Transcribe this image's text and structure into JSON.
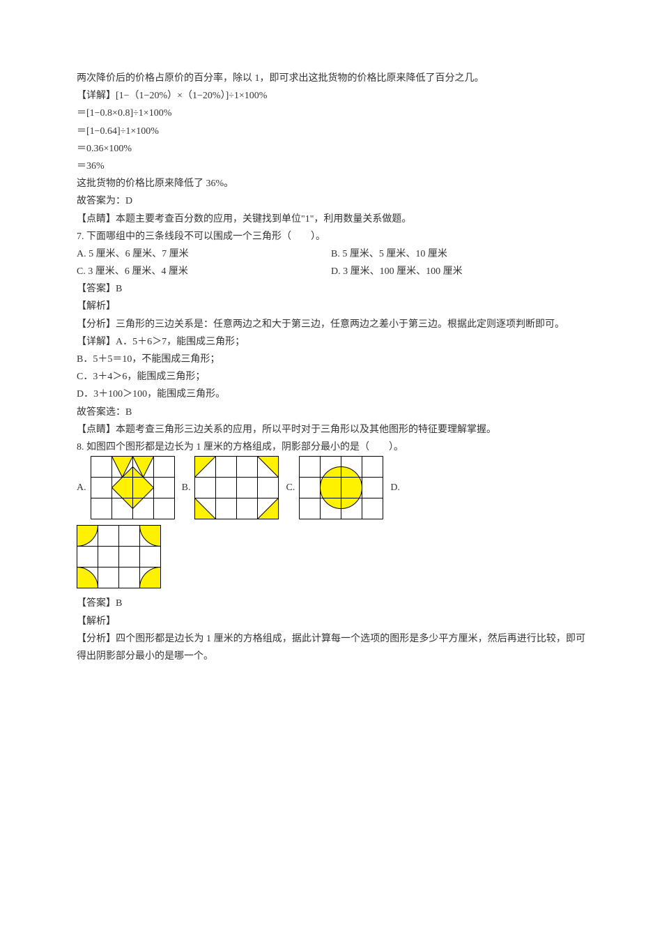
{
  "intro": {
    "line1": "两次降价后的价格占原价的百分率，除以 1，即可求出这批货物的价格比原来降低了百分之几。",
    "calc_label": "【详解】[1−（1−20%）×（1−20%）]÷1×100%",
    "calc1": "＝[1−0.8×0.8]÷1×100%",
    "calc2": "＝[1−0.64]÷1×100%",
    "calc3": "＝0.36×100%",
    "calc4": "＝36%",
    "conclusion": "这批货物的价格比原来降低了 36%。",
    "answer_line": "故答案为：D",
    "note": "【点睛】本题主要考查百分数的应用，关键找到单位\"1\"，利用数量关系做题。"
  },
  "q7": {
    "stem": "7. 下面哪组中的三条线段不可以围成一个三角形（　　）。",
    "optA": "A. 5 厘米、6 厘米、7 厘米",
    "optB": "B. 5 厘米、5 厘米、10 厘米",
    "optC": "C. 3 厘米、6 厘米、4 厘米",
    "optD": "D. 3 厘米、100 厘米、100 厘米",
    "answer": "【答案】B",
    "analysis_label": "【解析】",
    "analysis1": "【分析】三角形的三边关系是：任意两边之和大于第三边，任意两边之差小于第三边。根据此定则逐项判断即可。",
    "detail_label": "【详解】A．5＋6＞7，能围成三角形；",
    "detailB": "B．5＋5＝10，不能围成三角形；",
    "detailC": "C．3＋4＞6，能围成三角形；",
    "detailD": "D．3＋100＞100，能围成三角形。",
    "answer_line": "故答案选：B",
    "note": "【点睛】本题考查三角形三边关系的应用，所以平时对于三角形以及其他图形的特征要理解掌握。"
  },
  "q8": {
    "stem": "8. 如图四个图形都是边长为 1 厘米的方格组成，阴影部分最小的是（　　）。",
    "labelA": "A.",
    "labelB": "B.",
    "labelC": "C.",
    "labelD": "D.",
    "answer": "【答案】B",
    "analysis_label": "【解析】",
    "analysis1": "【分析】四个图形都是边长为 1 厘米的方格组成，据此计算每一个选项的图形是多少平方厘米，然后再进行比较，即可得出阴影部分最小的是哪一个。"
  },
  "colors": {
    "text": "#333333",
    "bg": "#ffffff",
    "grid_line": "#000000",
    "shade": "#fff200"
  },
  "grid": {
    "cell": 30,
    "cols": 4,
    "rows": 3,
    "stroke_width": 1
  }
}
